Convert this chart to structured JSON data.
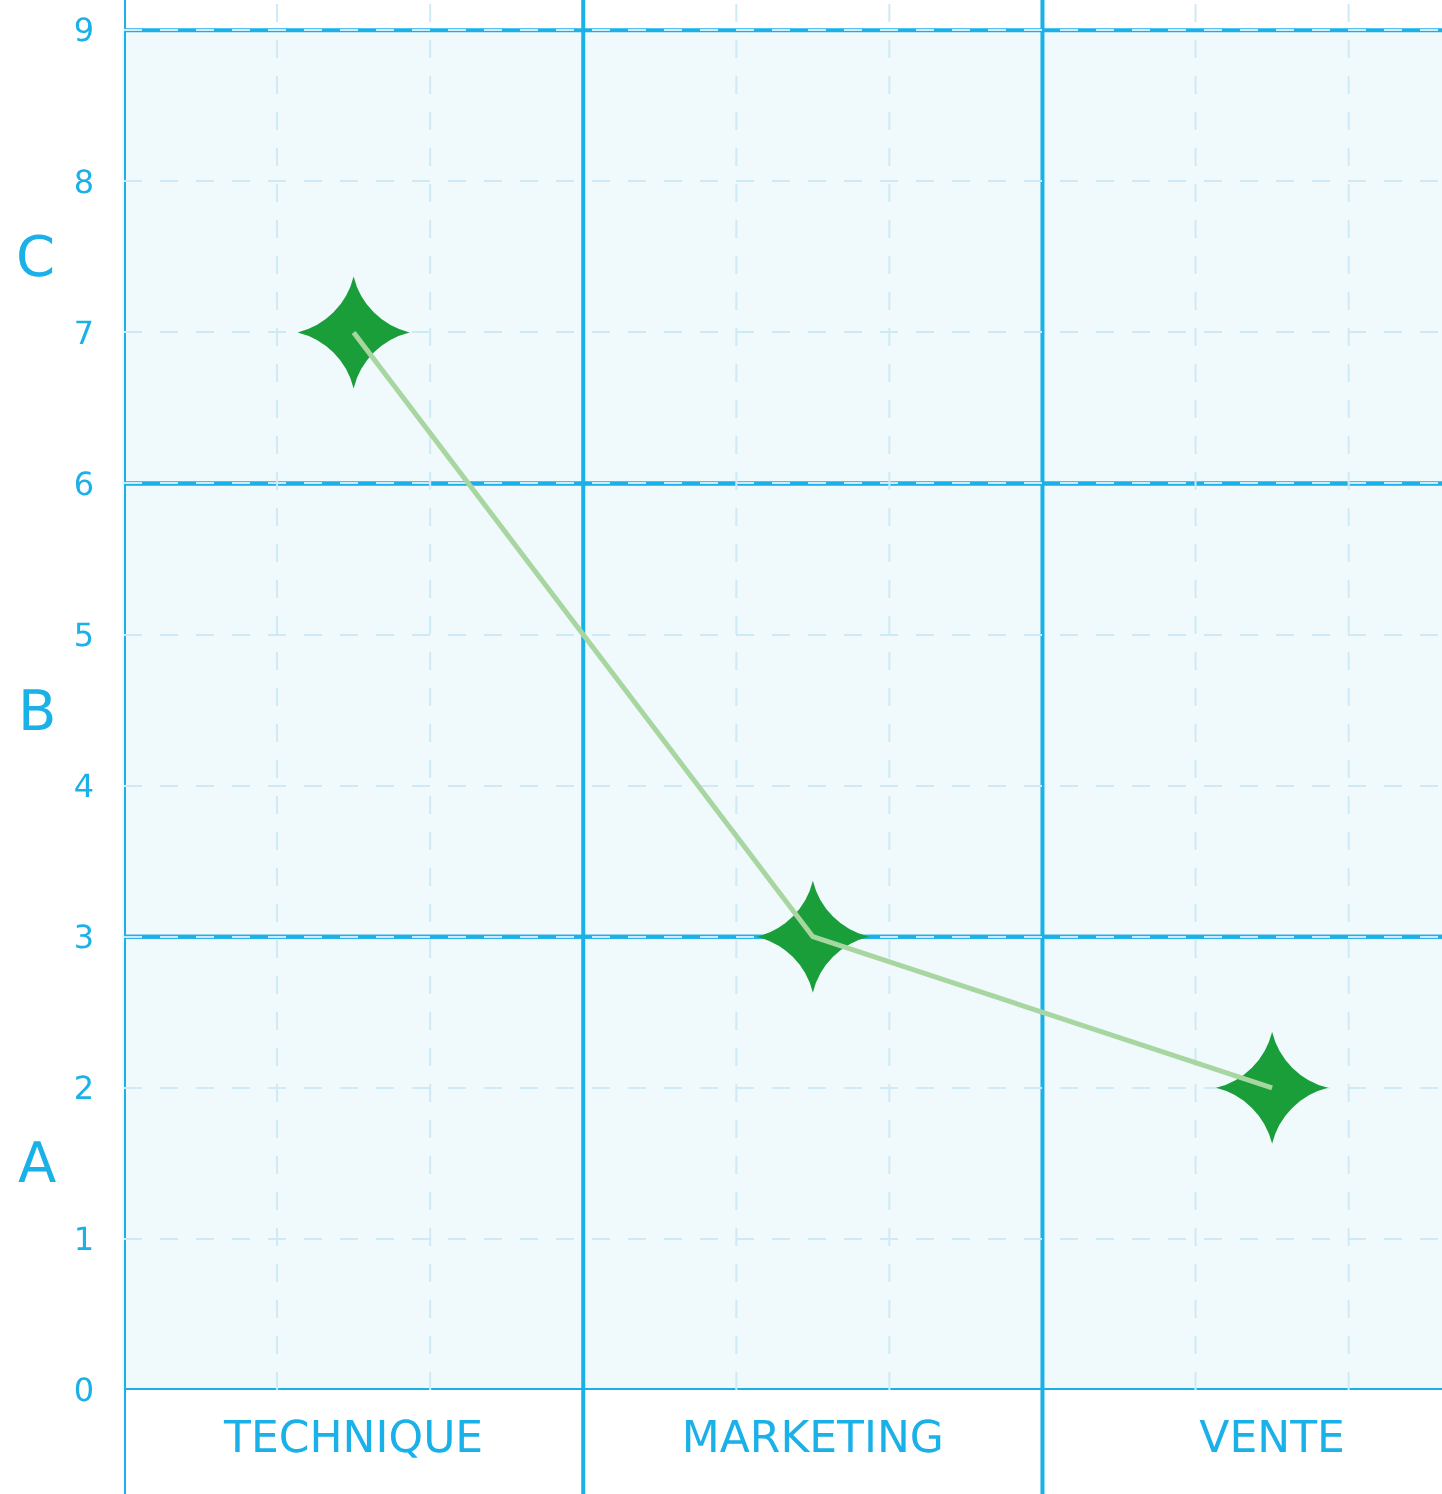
{
  "chart_data": {
    "type": "line",
    "categories": [
      "TECHNIQUE",
      "MARKETING",
      "VENTE"
    ],
    "ylim": [
      0,
      9.2
    ],
    "yticks": [
      0,
      1,
      2,
      3,
      4,
      5,
      6,
      7,
      8,
      9
    ],
    "bands": [
      {
        "axis": "y",
        "from": 0,
        "to": 3,
        "label": "A",
        "color": "#1ab0e8"
      },
      {
        "axis": "y",
        "from": 3,
        "to": 6,
        "label": "B",
        "color": "#1ab0e8"
      },
      {
        "axis": "y",
        "from": 6,
        "to": 9,
        "label": "C",
        "color": "#1ab0e8"
      }
    ],
    "series": [
      {
        "type": "scatter",
        "color": "#1a9e3a",
        "marker": "star",
        "values": [
          7,
          3,
          2
        ]
      },
      {
        "color": "#a8d6a0",
        "marker": "none",
        "line_style": "solid",
        "values": [
          7,
          3,
          2
        ]
      }
    ],
    "grid": true
  }
}
